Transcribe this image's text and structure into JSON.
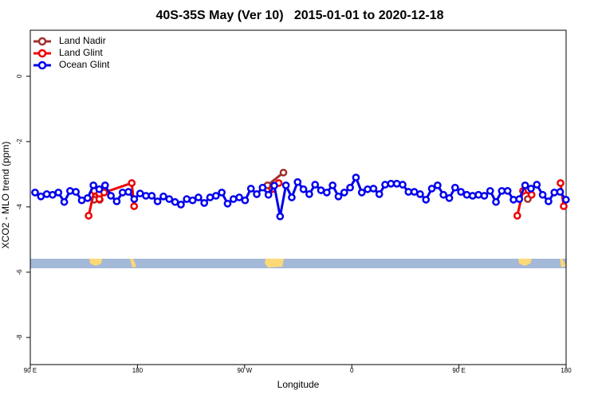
{
  "chart_data": {
    "type": "line",
    "title": "40S-35S May (Ver 10)   2015-01-01 to 2020-12-18",
    "x_label": "Longitude",
    "y_label": "XCO2 - MLO trend (ppm)",
    "xlim": [
      90,
      540
    ],
    "xticks": [
      {
        "value": 90,
        "label": "90 E"
      },
      180,
      {
        "value": 270,
        "label": "90 W"
      },
      {
        "value": 360,
        "label": "0"
      },
      {
        "value": 450,
        "label": "90 E"
      },
      {
        "value": 540,
        "label": "180"
      }
    ],
    "ylim": [
      -8.83,
      1.41
    ],
    "yticks": [
      0,
      -2,
      -4,
      -6,
      -8
    ],
    "legend": "top-left",
    "series": [
      {
        "name": "Land Nadir",
        "color": "#a0302c",
        "x": [
          143.7,
          148.3,
          null,
          289.2,
          302.6,
          null,
          507.8
        ],
        "values": [
          -3.78,
          -3.78,
          null,
          -3.34,
          -2.95,
          null,
          -3.76
        ]
      },
      {
        "name": "Land Glint",
        "color": "#ee0000",
        "x": [
          139,
          143.7,
          148,
          152,
          175.2,
          177.2,
          null,
          293.2,
          298.6,
          null,
          499,
          503.8,
          511,
          null,
          535.3,
          538
        ],
        "values": [
          -4.27,
          -3.51,
          -3.76,
          -3.56,
          -3.27,
          -3.98,
          null,
          -3.46,
          -3.27,
          null,
          -4.27,
          -3.51,
          -3.63,
          null,
          -3.27,
          -3.98
        ]
      },
      {
        "name": "Ocean Glint",
        "color": "#0000ee",
        "x": [
          94,
          98.9,
          103.8,
          108.7,
          113.6,
          118.5,
          123.4,
          128.3,
          133.2,
          138.1,
          143,
          147.9,
          152.8,
          157.7,
          162.6,
          167.5,
          172.4,
          177.3,
          182.2,
          187.1,
          192,
          196.9,
          201.8,
          206.7,
          211.6,
          216.5,
          221.4,
          226.3,
          231.2,
          236.1,
          241,
          245.9,
          250.8,
          255.7,
          260.6,
          265.5,
          270.4,
          275.3,
          280.2,
          285.1,
          290,
          294.9,
          299.8,
          304.7,
          309.6,
          314.5,
          319.4,
          324.3,
          329.2,
          334.1,
          339,
          343.9,
          348.8,
          353.7,
          358.6,
          363.5,
          368.4,
          373.3,
          378.2,
          383.1,
          388,
          392.9,
          397.8,
          402.7,
          407.6,
          412.5,
          417.4,
          422.3,
          427.2,
          432.1,
          437,
          441.9,
          446.8,
          451.7,
          456.6,
          461.5,
          466.4,
          471.3,
          476.2,
          481.1,
          486,
          490.9,
          495.8,
          500.7,
          505.6,
          510.5,
          515.4,
          520.3,
          525.2,
          530.1,
          535,
          539.9
        ],
        "values": [
          -3.56,
          -3.68,
          -3.61,
          -3.63,
          -3.56,
          -3.85,
          -3.51,
          -3.54,
          -3.8,
          -3.73,
          -3.34,
          -3.46,
          -3.34,
          -3.66,
          -3.83,
          -3.56,
          -3.54,
          -3.76,
          -3.59,
          -3.66,
          -3.66,
          -3.83,
          -3.68,
          -3.76,
          -3.85,
          -3.93,
          -3.76,
          -3.8,
          -3.71,
          -3.88,
          -3.71,
          -3.66,
          -3.56,
          -3.9,
          -3.76,
          -3.71,
          -3.8,
          -3.44,
          -3.61,
          -3.41,
          -3.63,
          -3.35,
          -4.29,
          -3.34,
          -3.71,
          -3.24,
          -3.46,
          -3.61,
          -3.32,
          -3.49,
          -3.56,
          -3.34,
          -3.68,
          -3.56,
          -3.41,
          -3.1,
          -3.56,
          -3.46,
          -3.44,
          -3.61,
          -3.32,
          -3.29,
          -3.29,
          -3.32,
          -3.54,
          -3.54,
          -3.61,
          -3.78,
          -3.44,
          -3.34,
          -3.63,
          -3.73,
          -3.41,
          -3.54,
          -3.63,
          -3.66,
          -3.63,
          -3.66,
          -3.51,
          -3.85,
          -3.51,
          -3.51,
          -3.78,
          -3.76,
          -3.34,
          -3.44,
          -3.32,
          -3.63,
          -3.83,
          -3.56,
          -3.54,
          -3.78
        ]
      }
    ]
  }
}
